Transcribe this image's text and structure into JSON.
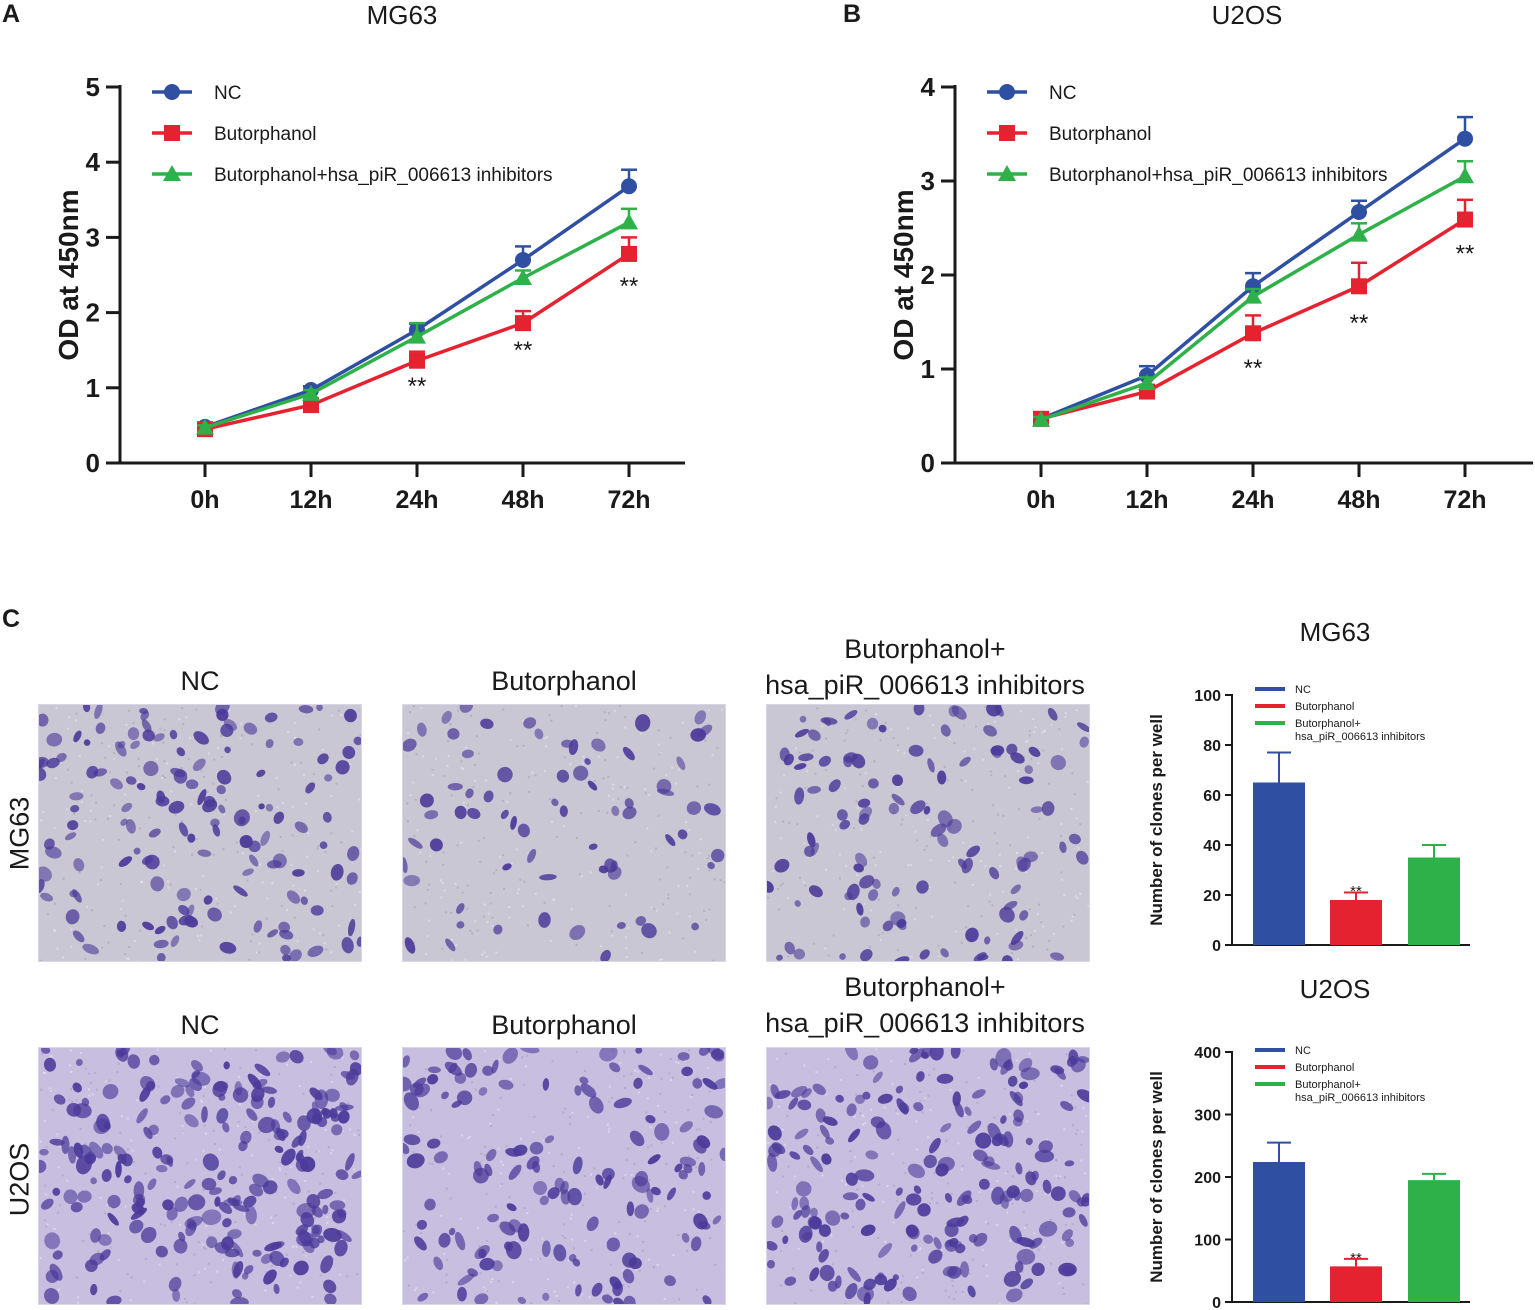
{
  "colors": {
    "nc": "#2f4fa2",
    "butorphanol": "#e52330",
    "inhibitor": "#2fb14a",
    "axis": "#1a1a1a",
    "cell_stain": "#4b3a9a",
    "field_mg63": "#c9c7d3",
    "field_u2os": "#c8bfe0"
  },
  "panel_labels": {
    "a": "A",
    "b": "B",
    "c": "C"
  },
  "chart_data": [
    {
      "id": "A",
      "type": "line",
      "title": "MG63",
      "xlabel": "",
      "ylabel": "OD at 450nm",
      "categories": [
        "0h",
        "12h",
        "24h",
        "48h",
        "72h"
      ],
      "ylim": [
        0,
        5
      ],
      "yticks": [
        0,
        1,
        2,
        3,
        4,
        5
      ],
      "grid": false,
      "legend": "top-left",
      "series": [
        {
          "name": "NC",
          "color_key": "nc",
          "marker": "circle",
          "values": [
            0.48,
            0.97,
            1.77,
            2.7,
            3.68
          ],
          "errors": [
            0.03,
            0.05,
            0.08,
            0.18,
            0.22
          ]
        },
        {
          "name": "Butorphanol",
          "color_key": "butorphanol",
          "marker": "square",
          "values": [
            0.45,
            0.77,
            1.36,
            1.86,
            2.78
          ],
          "errors": [
            0.03,
            0.05,
            0.12,
            0.16,
            0.22
          ]
        },
        {
          "name": "Butorphanol+hsa_piR_006613 inhibitors",
          "color_key": "inhibitor",
          "marker": "triangle",
          "values": [
            0.47,
            0.92,
            1.68,
            2.46,
            3.2
          ],
          "errors": [
            0.03,
            0.05,
            0.18,
            0.1,
            0.18
          ]
        }
      ],
      "annotations": [
        {
          "category": "24h",
          "y": 1.05,
          "text": "**"
        },
        {
          "category": "48h",
          "y": 1.53,
          "text": "**"
        },
        {
          "category": "72h",
          "y": 2.38,
          "text": "**"
        }
      ]
    },
    {
      "id": "B",
      "type": "line",
      "title": "U2OS",
      "xlabel": "",
      "ylabel": "OD at 450nm",
      "categories": [
        "0h",
        "12h",
        "24h",
        "48h",
        "72h"
      ],
      "ylim": [
        0,
        4
      ],
      "yticks": [
        0,
        1,
        2,
        3,
        4
      ],
      "grid": false,
      "legend": "top-left",
      "series": [
        {
          "name": "NC",
          "color_key": "nc",
          "marker": "circle",
          "values": [
            0.47,
            0.93,
            1.88,
            2.67,
            3.45
          ],
          "errors": [
            0.03,
            0.1,
            0.14,
            0.12,
            0.23
          ]
        },
        {
          "name": "Butorphanol",
          "color_key": "butorphanol",
          "marker": "square",
          "values": [
            0.47,
            0.76,
            1.38,
            1.88,
            2.59
          ],
          "errors": [
            0.03,
            0.05,
            0.19,
            0.25,
            0.21
          ]
        },
        {
          "name": "Butorphanol+hsa_piR_006613 inhibitors",
          "color_key": "inhibitor",
          "marker": "triangle",
          "values": [
            0.46,
            0.85,
            1.77,
            2.43,
            3.05
          ],
          "errors": [
            0.03,
            0.06,
            0.08,
            0.12,
            0.16
          ]
        }
      ],
      "annotations": [
        {
          "category": "24h",
          "y": 1.03,
          "text": "**"
        },
        {
          "category": "48h",
          "y": 1.51,
          "text": "**"
        },
        {
          "category": "72h",
          "y": 2.25,
          "text": "**"
        }
      ]
    },
    {
      "id": "C-MG63",
      "type": "bar",
      "title": "MG63",
      "xlabel": "",
      "ylabel": "Number of clones per well",
      "categories": [
        "NC",
        "Butorphanol",
        "Butorphanol+hsa_piR_006613 inhibitors"
      ],
      "values": [
        65,
        18,
        35
      ],
      "errors": [
        12,
        3,
        5
      ],
      "color_keys": [
        "nc",
        "butorphanol",
        "inhibitor"
      ],
      "ylim": [
        0,
        100
      ],
      "yticks": [
        0,
        20,
        40,
        60,
        80,
        100
      ],
      "grid": false,
      "legend": "top-left",
      "legend_entries": [
        "NC",
        "Butorphanol",
        "Butorphanol+",
        "hsa_piR_006613 inhibitors"
      ],
      "annotations": [
        {
          "category": "Butorphanol",
          "y": 22,
          "text": "**"
        }
      ]
    },
    {
      "id": "C-U2OS",
      "type": "bar",
      "title": "U2OS",
      "xlabel": "",
      "ylabel": "Number of clones per well",
      "categories": [
        "NC",
        "Butorphanol",
        "Butorphanol+hsa_piR_006613 inhibitors"
      ],
      "values": [
        224,
        57,
        195
      ],
      "errors": [
        31,
        12,
        10
      ],
      "color_keys": [
        "nc",
        "butorphanol",
        "inhibitor"
      ],
      "ylim": [
        0,
        400
      ],
      "yticks": [
        0,
        100,
        200,
        300,
        400
      ],
      "grid": false,
      "legend": "top-left",
      "legend_entries": [
        "NC",
        "Butorphanol",
        "Butorphanol+",
        "hsa_piR_006613 inhibitors"
      ],
      "annotations": [
        {
          "category": "Butorphanol",
          "y": 72,
          "text": "**"
        }
      ]
    }
  ],
  "micrographs": {
    "column_titles": [
      [
        "NC"
      ],
      [
        "Butorphanol"
      ],
      [
        "Butorphanol+",
        "hsa_piR_006613 inhibitors"
      ]
    ],
    "row_labels": [
      "MG63",
      "U2OS"
    ],
    "cell_density": [
      [
        140,
        70,
        110
      ],
      [
        220,
        140,
        190
      ]
    ]
  }
}
